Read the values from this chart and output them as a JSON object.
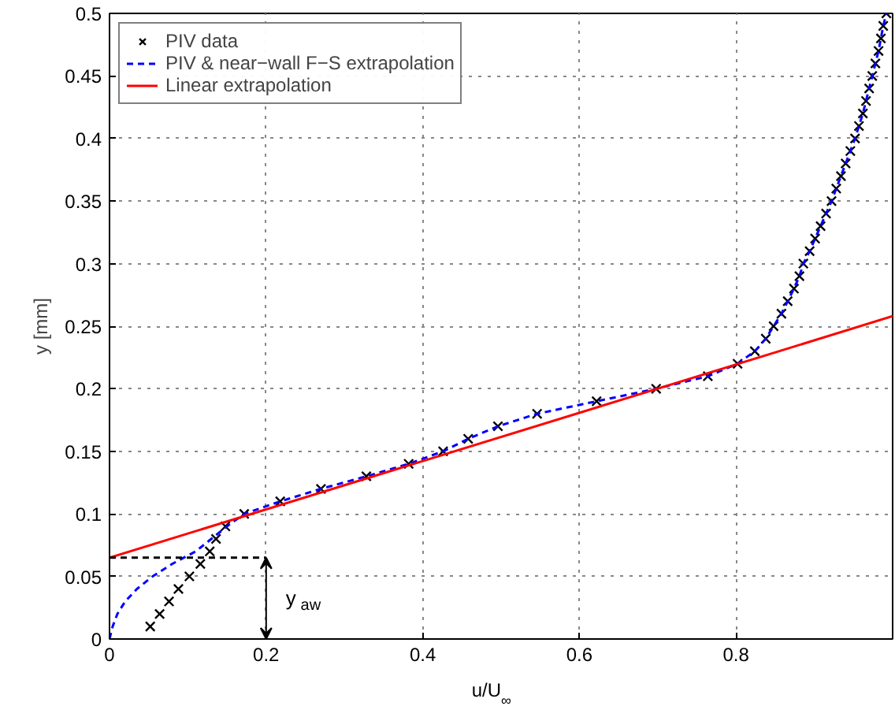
{
  "chart_data": {
    "type": "line",
    "xlabel": "u/U$_{∞}$",
    "ylabel": "y [mm]",
    "xlim": [
      0,
      1
    ],
    "ylim": [
      0,
      0.5
    ],
    "xticks": [
      0,
      0.2,
      0.4,
      0.6,
      0.8
    ],
    "yticks": [
      0,
      0.05,
      0.1,
      0.15,
      0.2,
      0.25,
      0.3,
      0.35,
      0.4,
      0.45,
      0.5
    ],
    "grid": true,
    "legend": "top left",
    "series": [
      {
        "name": "PIV data",
        "type": "scatter",
        "marker": "cross",
        "color": "#000000",
        "x": [
          0.052,
          0.064,
          0.076,
          0.088,
          0.102,
          0.116,
          0.128,
          0.136,
          0.148,
          0.172,
          0.218,
          0.27,
          0.328,
          0.382,
          0.426,
          0.458,
          0.496,
          0.546,
          0.622,
          0.698,
          0.764,
          0.802,
          0.824,
          0.838,
          0.848,
          0.858,
          0.866,
          0.874,
          0.881,
          0.886,
          0.894,
          0.901,
          0.908,
          0.915,
          0.922,
          0.928,
          0.934,
          0.94,
          0.946,
          0.952,
          0.957,
          0.962,
          0.966,
          0.97,
          0.974,
          0.978,
          0.982,
          0.985,
          0.988,
          0.992
        ],
        "values": [
          0.01,
          0.02,
          0.03,
          0.04,
          0.05,
          0.06,
          0.07,
          0.08,
          0.09,
          0.1,
          0.11,
          0.12,
          0.13,
          0.14,
          0.15,
          0.16,
          0.17,
          0.18,
          0.19,
          0.2,
          0.21,
          0.22,
          0.23,
          0.24,
          0.25,
          0.26,
          0.27,
          0.28,
          0.29,
          0.3,
          0.31,
          0.32,
          0.33,
          0.34,
          0.35,
          0.36,
          0.37,
          0.38,
          0.39,
          0.4,
          0.41,
          0.42,
          0.43,
          0.44,
          0.45,
          0.46,
          0.47,
          0.48,
          0.49,
          0.5
        ]
      },
      {
        "name": "PIV & near−wall F−S extrapolation",
        "line_style": "dashed",
        "color": "#0000ff",
        "x": [
          0,
          0.004,
          0.01,
          0.02,
          0.035,
          0.055,
          0.08,
          0.11,
          0.13,
          0.15,
          0.172,
          0.218,
          0.27,
          0.328,
          0.382,
          0.426,
          0.458,
          0.496,
          0.546,
          0.622,
          0.698,
          0.764,
          0.802,
          0.824,
          0.838,
          0.848,
          0.858,
          0.866,
          0.874,
          0.881,
          0.886,
          0.894,
          0.901,
          0.908,
          0.915,
          0.922,
          0.928,
          0.934,
          0.94,
          0.946,
          0.952,
          0.957,
          0.962,
          0.966,
          0.97,
          0.974,
          0.978,
          0.982,
          0.985,
          0.988,
          0.992
        ],
        "values": [
          0,
          0.01,
          0.02,
          0.03,
          0.04,
          0.05,
          0.06,
          0.07,
          0.08,
          0.09,
          0.1,
          0.11,
          0.12,
          0.13,
          0.14,
          0.15,
          0.16,
          0.17,
          0.18,
          0.19,
          0.2,
          0.21,
          0.22,
          0.23,
          0.24,
          0.25,
          0.26,
          0.27,
          0.28,
          0.29,
          0.3,
          0.31,
          0.32,
          0.33,
          0.34,
          0.35,
          0.36,
          0.37,
          0.38,
          0.39,
          0.4,
          0.41,
          0.42,
          0.43,
          0.44,
          0.45,
          0.46,
          0.47,
          0.48,
          0.49,
          0.5
        ]
      },
      {
        "name": "Linear extrapolation",
        "line_style": "solid",
        "color": "#ff0000",
        "x": [
          0,
          1
        ],
        "values": [
          0.065,
          0.258
        ]
      },
      {
        "line_style": "dashed",
        "color": "#000000",
        "x": [
          0,
          0.2
        ],
        "values": [
          0.065,
          0.065
        ]
      }
    ],
    "annotations": [
      {
        "text": "y$_{aw}$",
        "x": 0.2,
        "y": 0.065
      }
    ]
  }
}
